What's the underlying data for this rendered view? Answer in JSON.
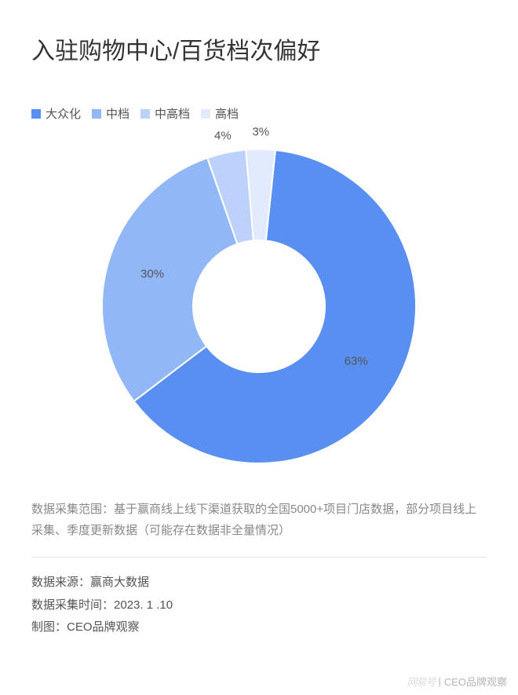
{
  "title": "入驻购物中心/百货档次偏好",
  "chart": {
    "type": "donut",
    "background_color": "#ffffff",
    "inner_radius_ratio": 0.42,
    "gap_color": "#ffffff",
    "gap_width": 2,
    "label_fontsize": 15,
    "label_color": "#555555",
    "series": [
      {
        "name": "大众化",
        "value": 63,
        "color": "#5a8ff2",
        "label": "63%"
      },
      {
        "name": "中档",
        "value": 30,
        "color": "#91b7f7",
        "label": "30%"
      },
      {
        "name": "中高档",
        "value": 4,
        "color": "#bcd1fb",
        "label": "4%"
      },
      {
        "name": "高档",
        "value": 3,
        "color": "#e2ebfd",
        "label": "3%"
      }
    ]
  },
  "legend_swatch_size": 12,
  "note": "数据采集范围：基于赢商线上线下渠道获取的全国5000+项目门店数据，部分项目线上采集、季度更新数据（可能存在数据非全量情况）",
  "meta": {
    "source_label": "数据来源：",
    "source_value": "赢商大数据",
    "time_label": "数据采集时间：",
    "time_value": "2023. 1 .10",
    "author_label": "制图：",
    "author_value": "CEO品牌观察"
  },
  "watermark": {
    "left": "网易号",
    "sep": "|",
    "right": "CEO品牌观察"
  }
}
